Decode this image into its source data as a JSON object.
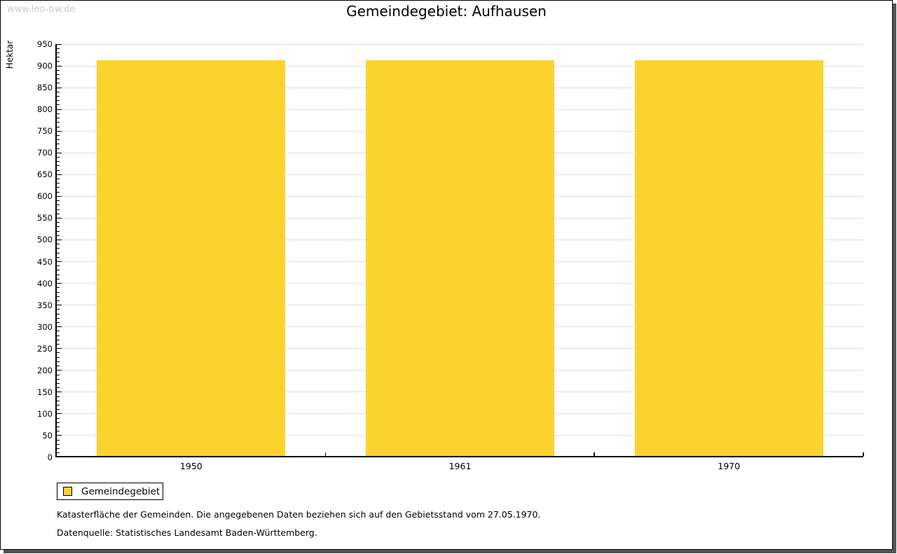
{
  "watermark": "www.leo-bw.de",
  "title": "Gemeindegebiet: Aufhausen",
  "chart_data": {
    "type": "bar",
    "title": "Gemeindegebiet: Aufhausen",
    "ylabel": "Hektar",
    "xlabel": "",
    "categories": [
      "1950",
      "1961",
      "1970"
    ],
    "series": [
      {
        "name": "Gemeindegebiet",
        "color": "#FCD32E",
        "values": [
          913,
          913,
          913
        ]
      }
    ],
    "ylim": [
      0,
      950
    ],
    "y_major_step": 50,
    "y_minor_step": 10,
    "y_tick_labels": [
      "0",
      "50",
      "100",
      "150",
      "200",
      "250",
      "300",
      "350",
      "400",
      "450",
      "500",
      "550",
      "600",
      "650",
      "700",
      "750",
      "800",
      "850",
      "900",
      "950"
    ],
    "grid": true,
    "legend_position": "bottom-left"
  },
  "legend": {
    "items": [
      {
        "label": "Gemeindegebiet",
        "color": "#FCD32E"
      }
    ]
  },
  "footnotes": {
    "line1": "Katasterfläche der Gemeinden. Die angegebenen Daten beziehen sich auf den Gebietsstand vom 27.05.1970.",
    "line2": "Datenquelle: Statistisches Landesamt Baden-Württemberg."
  },
  "colors": {
    "bar": "#FCD32E",
    "grid": "#DDDDDD",
    "axis": "#000000",
    "watermark": "#C9C9C9",
    "frame_shadow": "#555555"
  }
}
